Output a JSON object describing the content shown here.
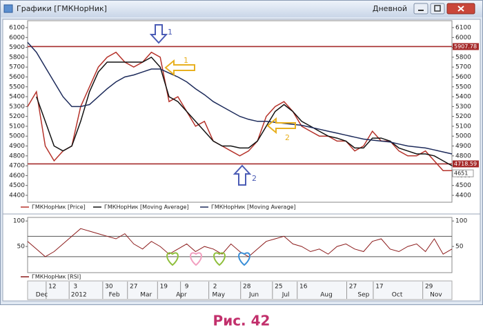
{
  "window": {
    "title": "Графики [ГМКНорНик]",
    "period": "Дневной"
  },
  "caption": "Рис. 42",
  "chart_data": [
    {
      "type": "line",
      "x": [
        0,
        5,
        10,
        15,
        20,
        25,
        30,
        35,
        40,
        45,
        50,
        55,
        60,
        65,
        70,
        75,
        80,
        85,
        90,
        95,
        100,
        105,
        110,
        115,
        120,
        125,
        130,
        135,
        140,
        145,
        150,
        155,
        160,
        165,
        170,
        175,
        180,
        185,
        190,
        195,
        200,
        205,
        210,
        215,
        220,
        225,
        230,
        235,
        240
      ],
      "xlim": [
        0,
        240
      ],
      "ylim": [
        4330,
        6170
      ],
      "yticks": [
        4400,
        4500,
        4600,
        4700,
        4800,
        4900,
        5000,
        5100,
        5200,
        5300,
        5400,
        5500,
        5600,
        5700,
        5800,
        5900,
        6000,
        6100
      ],
      "series": [
        {
          "name": "ГМКНорНик [Price]",
          "color": "#b5322a",
          "values": [
            5300,
            5450,
            4900,
            4750,
            4850,
            4900,
            5300,
            5500,
            5700,
            5800,
            5850,
            5750,
            5700,
            5750,
            5850,
            5800,
            5350,
            5400,
            5250,
            5100,
            5150,
            4950,
            4900,
            4850,
            4800,
            4850,
            4950,
            5200,
            5300,
            5350,
            5250,
            5100,
            5050,
            5000,
            5000,
            4950,
            4950,
            4850,
            4900,
            5050,
            4950,
            4950,
            4850,
            4800,
            4800,
            4850,
            4750,
            4650,
            4651
          ]
        },
        {
          "name": "ГМКНорНик [Moving Average]",
          "color": "#111111",
          "values": [
            null,
            5400,
            5150,
            4900,
            4850,
            4900,
            5150,
            5450,
            5650,
            5750,
            5750,
            5750,
            5750,
            5750,
            5800,
            5700,
            5400,
            5350,
            5250,
            5150,
            5050,
            4950,
            4900,
            4900,
            4880,
            4880,
            4950,
            5100,
            5250,
            5320,
            5250,
            5150,
            5100,
            5050,
            5000,
            4980,
            4950,
            4880,
            4880,
            4980,
            4980,
            4950,
            4880,
            4850,
            4820,
            4820,
            4800,
            4750,
            4700
          ]
        },
        {
          "name": "ГМКНорНик [Moving Average]",
          "color": "#1c2a5a",
          "values": [
            5950,
            5850,
            5700,
            5550,
            5400,
            5300,
            5300,
            5320,
            5400,
            5480,
            5550,
            5600,
            5620,
            5650,
            5680,
            5680,
            5640,
            5600,
            5550,
            5480,
            5420,
            5350,
            5300,
            5250,
            5200,
            5170,
            5150,
            5150,
            5140,
            5130,
            5120,
            5110,
            5090,
            5070,
            5050,
            5030,
            5010,
            4990,
            4970,
            4960,
            4950,
            4940,
            4920,
            4900,
            4890,
            4880,
            4860,
            4840,
            4820
          ]
        }
      ],
      "levels": [
        5907.78,
        4718.59
      ],
      "level_color": "#a52a2a",
      "last_value": 4651,
      "annotations": [
        {
          "text": "1",
          "color": "#4a5bb5"
        },
        {
          "text": "1",
          "color": "#e8b020"
        },
        {
          "text": "2",
          "color": "#4a5bb5"
        },
        {
          "text": "2",
          "color": "#e8b020"
        }
      ]
    },
    {
      "type": "line",
      "x": [
        0,
        5,
        10,
        15,
        20,
        25,
        30,
        35,
        40,
        45,
        50,
        55,
        60,
        65,
        70,
        75,
        80,
        85,
        90,
        95,
        100,
        105,
        110,
        115,
        120,
        125,
        130,
        135,
        140,
        145,
        150,
        155,
        160,
        165,
        170,
        175,
        180,
        185,
        190,
        195,
        200,
        205,
        210,
        215,
        220,
        225,
        230,
        235,
        240
      ],
      "xlim": [
        0,
        240
      ],
      "ylim": [
        0,
        107
      ],
      "yticks": [
        50,
        100
      ],
      "levels": [
        30,
        70
      ],
      "level_color": "#555555",
      "series": [
        {
          "name": "ГМКНорНик [RSI]",
          "color": "#8b1a1a",
          "values": [
            60,
            45,
            30,
            40,
            55,
            70,
            85,
            80,
            75,
            70,
            65,
            75,
            55,
            45,
            60,
            50,
            35,
            45,
            55,
            40,
            50,
            45,
            35,
            55,
            40,
            30,
            45,
            60,
            65,
            70,
            55,
            50,
            40,
            45,
            35,
            50,
            55,
            45,
            40,
            60,
            65,
            45,
            40,
            50,
            55,
            40,
            65,
            35,
            45
          ]
        }
      ],
      "xticks": [
        {
          "value": 14,
          "label": "12"
        },
        {
          "value": 27,
          "label": "3"
        },
        {
          "value": 46,
          "label": "30"
        },
        {
          "value": 60,
          "label": "27"
        },
        {
          "value": 77,
          "label": "19"
        },
        {
          "value": 90,
          "label": "9"
        },
        {
          "value": 106,
          "label": "2"
        },
        {
          "value": 124,
          "label": "28"
        },
        {
          "value": 142,
          "label": "25"
        },
        {
          "value": 156,
          "label": "16"
        },
        {
          "value": 184,
          "label": "27"
        },
        {
          "value": 199,
          "label": "17"
        },
        {
          "value": 227,
          "label": "29"
        }
      ],
      "xticks_months": [
        {
          "value": 8,
          "label": "Dec"
        },
        {
          "value": 29,
          "label": "2012"
        },
        {
          "value": 49,
          "label": "Feb"
        },
        {
          "value": 67,
          "label": "Mar"
        },
        {
          "value": 87,
          "label": "Apr"
        },
        {
          "value": 108,
          "label": "May"
        },
        {
          "value": 128,
          "label": "Jun"
        },
        {
          "value": 146,
          "label": "Jul"
        },
        {
          "value": 169,
          "label": "Aug"
        },
        {
          "value": 190,
          "label": "Sep"
        },
        {
          "value": 209,
          "label": "Oct"
        },
        {
          "value": 231,
          "label": "Nov"
        }
      ]
    }
  ]
}
